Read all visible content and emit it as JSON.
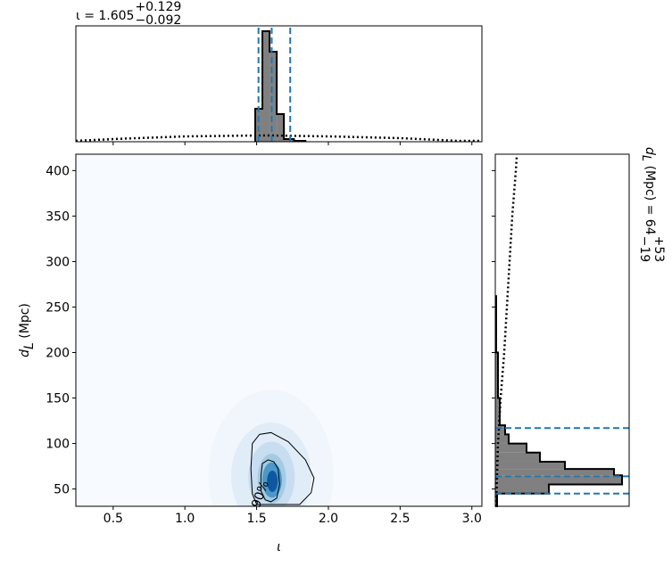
{
  "chart_data": [
    {
      "type": "contour",
      "xlim": [
        0.24,
        3.07
      ],
      "ylim": [
        31,
        418
      ],
      "xticks": [
        0.5,
        {
          "value": 1,
          "label": "1.0"
        },
        1.5,
        {
          "value": 2,
          "label": "2.0"
        },
        2.5,
        {
          "value": 3,
          "label": "3.0"
        }
      ],
      "yticks": [
        50,
        100,
        150,
        200,
        250,
        300,
        350,
        400
      ],
      "xlabel": "ι",
      "ylabel": {
        "symbol": "d",
        "sub": "L",
        "unit": " (Mpc)"
      },
      "density_peak": {
        "x": 1.6,
        "y": 58
      },
      "contours": [
        {
          "x": [
            1.54,
            1.58,
            1.62,
            1.65,
            1.66,
            1.64,
            1.6,
            1.56,
            1.53,
            1.53
          ],
          "y": [
            78,
            82,
            80,
            72,
            55,
            40,
            36,
            38,
            48,
            65
          ]
        },
        {
          "label": "90%",
          "x": [
            1.47,
            1.52,
            1.6,
            1.72,
            1.84,
            1.9,
            1.88,
            1.8,
            1.5,
            1.47,
            1.46
          ],
          "y": [
            100,
            110,
            112,
            102,
            82,
            62,
            46,
            33,
            33,
            45,
            72
          ]
        }
      ]
    },
    {
      "type": "histogram",
      "title": {
        "text": "ι = 1.605",
        "upper": "+0.129",
        "lower": "−0.092"
      },
      "xlim": [
        0.24,
        3.07
      ],
      "ylim": [
        0,
        130
      ],
      "bins": [
        1.49,
        1.54,
        1.59,
        1.64,
        1.69,
        1.76,
        1.84
      ],
      "counts": [
        37,
        124,
        101,
        31,
        3,
        1
      ],
      "quantiles": [
        1.513,
        1.605,
        1.734
      ],
      "prior": {
        "x": [
          0.24,
          0.5,
          1.0,
          1.5,
          1.6,
          2.0,
          2.5,
          2.9,
          3.07
        ],
        "y": [
          1,
          3,
          6,
          7,
          7,
          6,
          4,
          1,
          1
        ]
      }
    },
    {
      "type": "histogram",
      "orientation": "horizontal",
      "title": {
        "symbol": "d",
        "sub": "L",
        "text": " (Mpc) = 64",
        "upper": "+53",
        "lower": "−19"
      },
      "ylim": [
        31,
        418
      ],
      "xlim": [
        0,
        150
      ],
      "bins": [
        31,
        45,
        55,
        65,
        72,
        80,
        90,
        100,
        110,
        120,
        150,
        200,
        262
      ],
      "counts": [
        2,
        60,
        142,
        133,
        78,
        50,
        35,
        15,
        11,
        5,
        3,
        1
      ],
      "quantiles": [
        45,
        64,
        117
      ],
      "prior": {
        "y": [
          31,
          100,
          150,
          200,
          250,
          300,
          350,
          400,
          415
        ],
        "x": [
          1,
          3,
          6,
          10,
          13,
          16,
          19,
          23,
          24
        ]
      }
    }
  ]
}
